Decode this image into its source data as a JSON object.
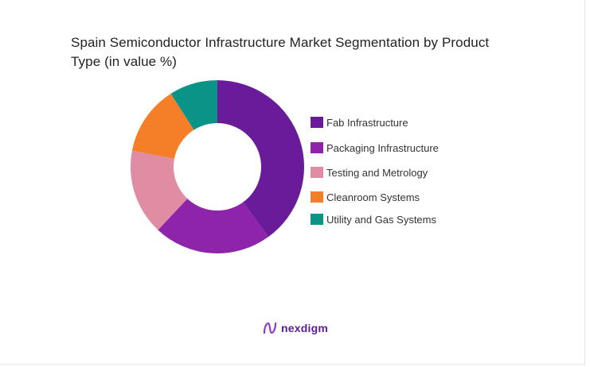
{
  "title": "Spain Semiconductor Infrastructure Market Segmentation by Product Type (in value %)",
  "brand": {
    "name": "nexdigm",
    "color": "#7b2fbe"
  },
  "chart_data": {
    "type": "pie",
    "donut": true,
    "title": "Spain Semiconductor Infrastructure Market Segmentation by Product Type (in value %)",
    "legend_position": "right",
    "series": [
      {
        "name": "Fab Infrastructure",
        "value": 40,
        "color": "#6a1b9a"
      },
      {
        "name": "Packaging Infrastructure",
        "value": 22,
        "color": "#8e24aa"
      },
      {
        "name": "Testing and Metrology",
        "value": 16,
        "color": "#e08ca3"
      },
      {
        "name": "Cleanroom Systems",
        "value": 13,
        "color": "#f57f29"
      },
      {
        "name": "Utility and Gas Systems",
        "value": 9,
        "color": "#0a9488"
      }
    ]
  }
}
